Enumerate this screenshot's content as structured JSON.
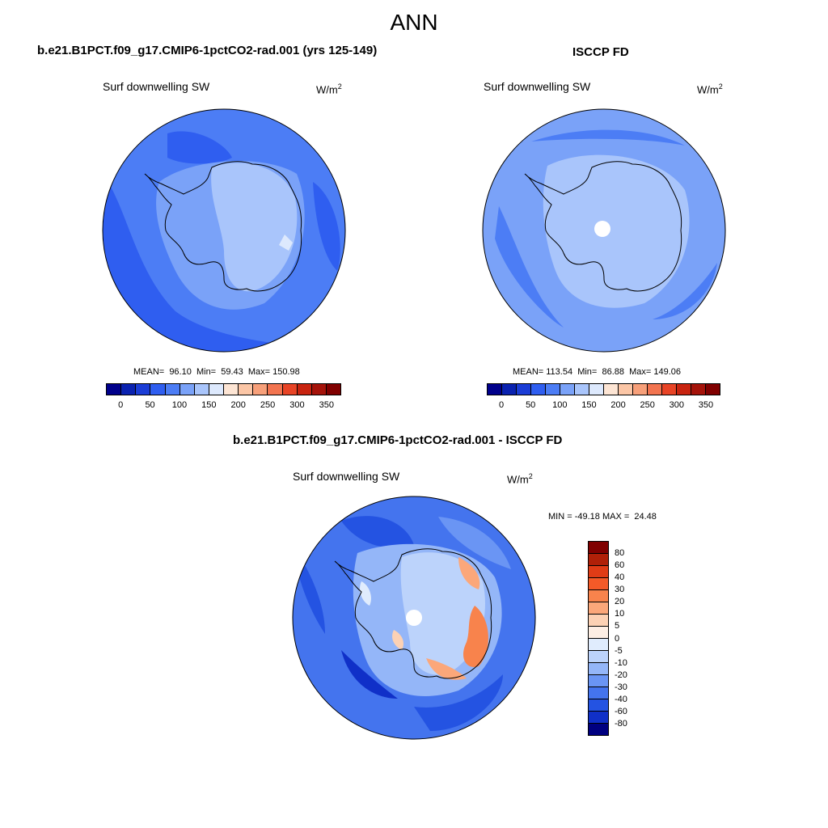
{
  "page": {
    "title": "ANN"
  },
  "panels": {
    "model": {
      "title": "b.e21.B1PCT.f09_g17.CMIP6-1pctCO2-rad.001 (yrs 125-149)",
      "variable": "Surf downwelling SW",
      "unit": "W/m",
      "unit_exp": "2",
      "stats": "MEAN=  96.10  Min=  59.43  Max= 150.98",
      "mean": 96.1,
      "min": 59.43,
      "max": 150.98
    },
    "obs": {
      "title": "ISCCP FD",
      "variable": "Surf downwelling SW",
      "unit": "W/m",
      "unit_exp": "2",
      "stats": "MEAN= 113.54  Min=  86.88  Max= 149.06",
      "mean": 113.54,
      "min": 86.88,
      "max": 149.06
    },
    "diff": {
      "title": "b.e21.B1PCT.f09_g17.CMIP6-1pctCO2-rad.001 - ISCCP FD",
      "variable": "Surf downwelling SW",
      "unit": "W/m",
      "unit_exp": "2",
      "stats": "MIN = -49.18 MAX =  24.48",
      "min": -49.18,
      "max": 24.48
    }
  },
  "colorbar_abs": {
    "ticks": [
      "0",
      "50",
      "100",
      "150",
      "200",
      "250",
      "300",
      "350"
    ],
    "colors": [
      "#00008b",
      "#0a22b0",
      "#1b3dd6",
      "#2f5ef0",
      "#4c7df5",
      "#7aa2f8",
      "#a9c5fb",
      "#dde9fd",
      "#fde5d4",
      "#fbc6a6",
      "#f7a07a",
      "#f27450",
      "#e84426",
      "#c82410",
      "#a5130a",
      "#800000"
    ]
  },
  "colorbar_diff": {
    "ticks": [
      "80",
      "60",
      "40",
      "30",
      "20",
      "10",
      "5",
      "0",
      "-5",
      "-10",
      "-20",
      "-30",
      "-40",
      "-60",
      "-80"
    ],
    "colors": [
      "#800000",
      "#b02008",
      "#e03c16",
      "#f45a28",
      "#f8834c",
      "#fba77a",
      "#fcd1b4",
      "#fdeee4",
      "#e0ecfd",
      "#bcd3fb",
      "#94b6f8",
      "#6a95f4",
      "#4474ee",
      "#2453e2",
      "#1030c8",
      "#000080"
    ]
  }
}
